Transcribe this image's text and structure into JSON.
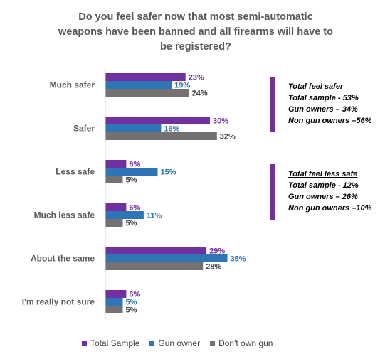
{
  "chart_data": {
    "type": "bar",
    "orientation": "horizontal",
    "title_lines": [
      "Do you feel safer now that most semi-automatic",
      "weapons have been banned and all firearms will have to",
      "be registered?"
    ],
    "categories": [
      "Much safer",
      "Safer",
      "Less safe",
      "Much less safe",
      "About the same",
      "I'm really not sure"
    ],
    "series": [
      {
        "name": "Total Sample",
        "values": [
          23,
          30,
          6,
          6,
          29,
          6
        ],
        "color": "#7030A0"
      },
      {
        "name": "Gun owner",
        "values": [
          19,
          16,
          15,
          11,
          35,
          5
        ],
        "color": "#2E75B6"
      },
      {
        "name": "Don't own gun",
        "values": [
          24,
          32,
          5,
          5,
          28,
          5
        ],
        "color": "#767171"
      }
    ],
    "value_suffix": "%",
    "xlim": [
      0,
      35
    ],
    "grid": false,
    "legend_position": "bottom",
    "annotations": [
      {
        "heading": "Total feel safer",
        "lines": [
          "Total sample - 53%",
          "Gun owners – 34%",
          "Non gun owners  –56%"
        ],
        "bar_color": "#7030A0"
      },
      {
        "heading": "Total feel less safe",
        "lines": [
          "Total sample - 12%",
          "Gun owners – 26%",
          "Non gun owners  –10%"
        ],
        "bar_color": "#7030A0"
      }
    ]
  }
}
